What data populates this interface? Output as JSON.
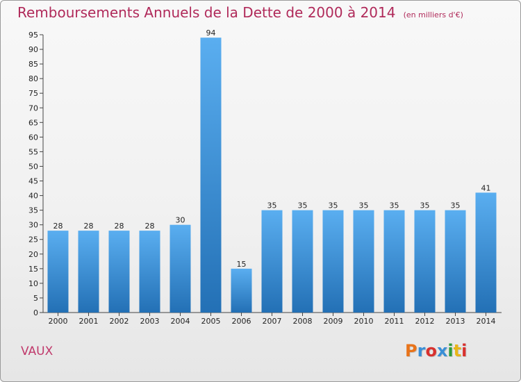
{
  "header": {
    "title": "Remboursements Annuels de la Dette de 2000 à 2014",
    "unit": "(en milliers d'€)"
  },
  "footer": {
    "commune": "VAUX",
    "logo_text": "Proxiti",
    "logo_colors": [
      "#e8731a",
      "#3a8fd6",
      "#d8312e",
      "#3a8fd6",
      "#2e9b3c",
      "#e8b51a",
      "#d8312e"
    ]
  },
  "colors": {
    "bar_top": "#5aaef0",
    "bar_bottom": "#2370b5",
    "title": "#b02a5a"
  },
  "chart_data": {
    "type": "bar",
    "title": "Remboursements Annuels de la Dette de 2000 à 2014",
    "categories": [
      "2000",
      "2001",
      "2002",
      "2003",
      "2004",
      "2005",
      "2006",
      "2007",
      "2008",
      "2009",
      "2010",
      "2011",
      "2012",
      "2013",
      "2014"
    ],
    "values": [
      28,
      28,
      28,
      28,
      30,
      94,
      15,
      35,
      35,
      35,
      35,
      35,
      35,
      35,
      41
    ],
    "data_labels": [
      "28",
      "28",
      "28",
      "28",
      "30",
      "94",
      "15",
      "35",
      "35",
      "35",
      "35",
      "35",
      "35",
      "35",
      "41"
    ],
    "ylim": [
      0,
      95
    ],
    "yticks": [
      0,
      5,
      10,
      15,
      20,
      25,
      30,
      35,
      40,
      45,
      50,
      55,
      60,
      65,
      70,
      75,
      80,
      85,
      90,
      95
    ],
    "grid": false,
    "xlabel": "",
    "ylabel": ""
  }
}
